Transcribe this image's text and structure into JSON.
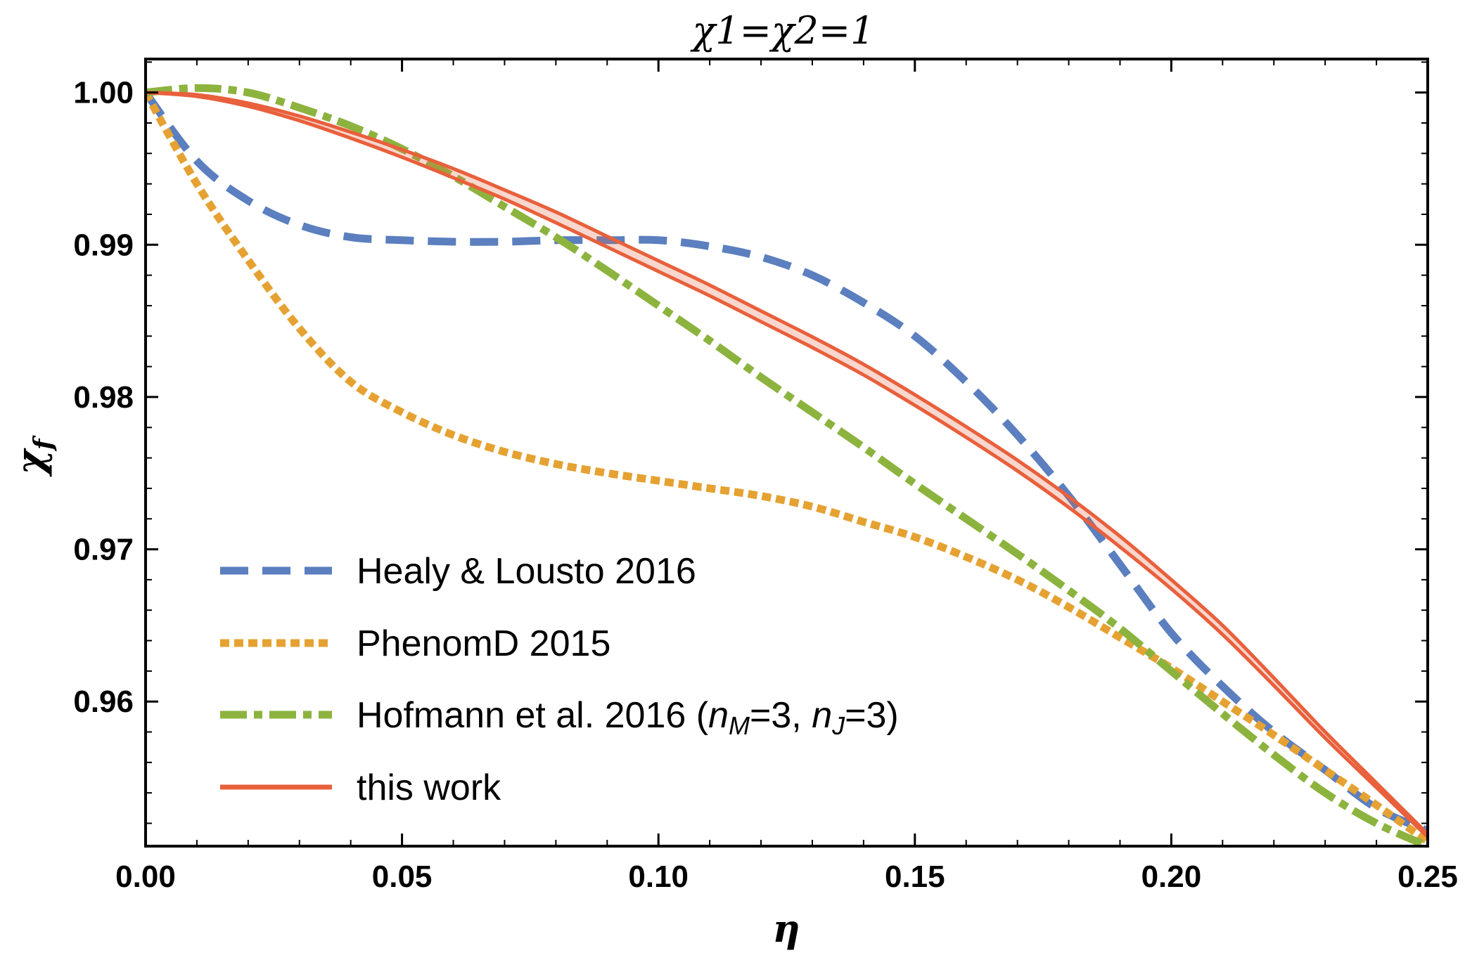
{
  "chart_data": {
    "type": "line",
    "title": "χ1=χ2=1",
    "xlabel": "η",
    "ylabel": "χf",
    "ylabel_main": "χ",
    "ylabel_sub": "f",
    "xlim": [
      0.0,
      0.25
    ],
    "ylim": [
      0.9505,
      1.0022
    ],
    "x_ticks": [
      0.0,
      0.05,
      0.1,
      0.15,
      0.2,
      0.25
    ],
    "x_tick_labels": [
      "0.00",
      "0.05",
      "0.10",
      "0.15",
      "0.20",
      "0.25"
    ],
    "y_ticks": [
      0.96,
      0.97,
      0.98,
      0.99,
      1.0
    ],
    "y_tick_labels": [
      "0.96",
      "0.97",
      "0.98",
      "0.99",
      "1.00"
    ],
    "grid": false,
    "legend_position": "bottom-left",
    "series": [
      {
        "name": "Healy & Lousto 2016",
        "color": "#5b7fbf",
        "style": "dashed",
        "x": [
          0.0,
          0.01,
          0.02,
          0.03,
          0.04,
          0.05,
          0.06,
          0.07,
          0.08,
          0.09,
          0.1,
          0.11,
          0.12,
          0.13,
          0.14,
          0.15,
          0.16,
          0.17,
          0.18,
          0.19,
          0.2,
          0.21,
          0.22,
          0.23,
          0.24,
          0.25
        ],
        "y": [
          1.0,
          0.9955,
          0.9929,
          0.9913,
          0.9905,
          0.9903,
          0.9902,
          0.9902,
          0.9903,
          0.9903,
          0.9903,
          0.9899,
          0.9892,
          0.988,
          0.9862,
          0.984,
          0.981,
          0.9775,
          0.9735,
          0.969,
          0.9645,
          0.961,
          0.958,
          0.9555,
          0.953,
          0.9515
        ]
      },
      {
        "name": "PhenomD 2015",
        "color": "#e5a232",
        "style": "dotted",
        "x": [
          0.0,
          0.01,
          0.02,
          0.03,
          0.04,
          0.05,
          0.06,
          0.07,
          0.08,
          0.09,
          0.1,
          0.11,
          0.12,
          0.13,
          0.14,
          0.15,
          0.16,
          0.17,
          0.18,
          0.19,
          0.2,
          0.21,
          0.22,
          0.23,
          0.24,
          0.25
        ],
        "y": [
          1.0,
          0.994,
          0.989,
          0.9845,
          0.981,
          0.979,
          0.9775,
          0.9764,
          0.9756,
          0.975,
          0.9745,
          0.974,
          0.9735,
          0.9728,
          0.9718,
          0.9708,
          0.9695,
          0.968,
          0.9662,
          0.9642,
          0.9622,
          0.96,
          0.9578,
          0.9555,
          0.9532,
          0.9508
        ]
      },
      {
        "name": "Hofmann et al. 2016 (nM=3, nJ=3)",
        "color": "#8db33f",
        "style": "dashdot",
        "x": [
          0.0,
          0.01,
          0.02,
          0.03,
          0.04,
          0.05,
          0.06,
          0.07,
          0.08,
          0.09,
          0.1,
          0.11,
          0.12,
          0.13,
          0.14,
          0.15,
          0.16,
          0.17,
          0.18,
          0.19,
          0.2,
          0.21,
          0.22,
          0.23,
          0.24,
          0.25
        ],
        "y": [
          1.0,
          1.0003,
          1.0,
          0.999,
          0.9978,
          0.9963,
          0.9945,
          0.9925,
          0.9905,
          0.9883,
          0.986,
          0.9837,
          0.9813,
          0.979,
          0.9767,
          0.9743,
          0.972,
          0.9697,
          0.9673,
          0.9648,
          0.962,
          0.9592,
          0.9565,
          0.954,
          0.952,
          0.9505
        ]
      },
      {
        "name": "this work",
        "color": "#e8603c",
        "style": "solid",
        "x": [
          0.0,
          0.01,
          0.02,
          0.03,
          0.04,
          0.05,
          0.06,
          0.07,
          0.08,
          0.09,
          0.1,
          0.11,
          0.12,
          0.13,
          0.14,
          0.15,
          0.16,
          0.17,
          0.18,
          0.19,
          0.2,
          0.21,
          0.22,
          0.23,
          0.24,
          0.25
        ],
        "y": [
          1.0,
          0.9998,
          0.9992,
          0.9983,
          0.9972,
          0.996,
          0.9947,
          0.9933,
          0.9918,
          0.9902,
          0.9886,
          0.987,
          0.9853,
          0.9836,
          0.9818,
          0.9798,
          0.9777,
          0.9755,
          0.9731,
          0.9705,
          0.9677,
          0.9647,
          0.9613,
          0.9578,
          0.9545,
          0.9512
        ],
        "band_halfwidth": [
          0.0,
          5e-05,
          0.0001,
          0.00015,
          0.0002,
          0.00025,
          0.0003,
          0.0003,
          0.00035,
          0.00035,
          0.00035,
          0.00035,
          0.00035,
          0.00035,
          0.00035,
          0.00035,
          0.00035,
          0.00035,
          0.00035,
          0.00035,
          0.0003,
          0.0003,
          0.00025,
          0.0002,
          0.00015,
          0.0001
        ]
      }
    ],
    "legend": [
      {
        "label": "Healy & Lousto 2016"
      },
      {
        "label": "PhenomD 2015"
      },
      {
        "label_prefix": "Hofmann et al. 2016 (",
        "n1": "n",
        "sub1": "M",
        "eq1": "=3, ",
        "n2": "n",
        "sub2": "J",
        "eq2": "=3)"
      },
      {
        "label": "this work"
      }
    ]
  }
}
